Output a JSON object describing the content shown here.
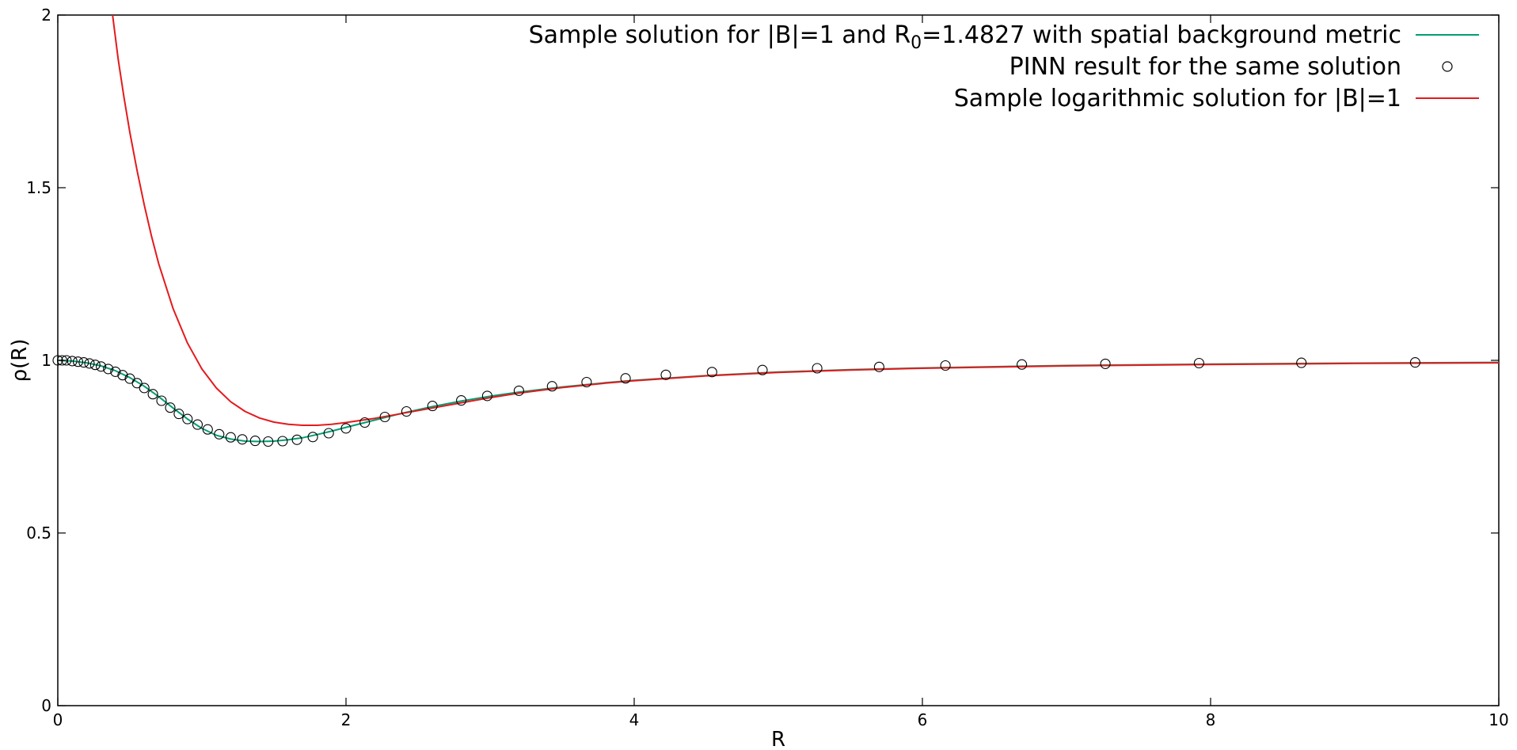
{
  "chart_data": {
    "type": "line",
    "title": "",
    "xlabel": "R",
    "ylabel": "ρ(R)",
    "xlim": [
      0,
      10
    ],
    "ylim": [
      0,
      2
    ],
    "x_ticks": [
      "0",
      "2",
      "4",
      "6",
      "8",
      "10"
    ],
    "y_ticks": [
      "0",
      "0.5",
      "1",
      "1.5",
      "2"
    ],
    "grid": false,
    "legend_position": "top-right",
    "series": [
      {
        "name": "Sample solution for |B|=1 and R0=1.4827 with spatial background metric",
        "name_parts": {
          "prefix": "Sample solution for |B|=1 and R",
          "subscript": "0",
          "suffix": "=1.4827 with spatial background metric"
        },
        "style": "line",
        "color": "#009e73",
        "x": [
          0,
          0.1,
          0.2,
          0.3,
          0.4,
          0.5,
          0.6,
          0.7,
          0.8,
          0.9,
          1.0,
          1.1,
          1.2,
          1.3,
          1.4,
          1.5,
          1.6,
          1.7,
          1.8,
          1.9,
          2.0,
          2.2,
          2.4,
          2.6,
          2.8,
          3.0,
          3.2,
          3.5,
          3.8,
          4.0,
          4.5,
          5.0,
          5.5,
          6.0,
          7.0,
          8.0,
          9.0,
          10.0
        ],
        "y": [
          1.0,
          0.998,
          0.993,
          0.984,
          0.97,
          0.95,
          0.925,
          0.895,
          0.862,
          0.83,
          0.803,
          0.783,
          0.772,
          0.766,
          0.765,
          0.766,
          0.77,
          0.776,
          0.785,
          0.795,
          0.806,
          0.827,
          0.848,
          0.866,
          0.882,
          0.896,
          0.908,
          0.923,
          0.935,
          0.942,
          0.956,
          0.966,
          0.973,
          0.978,
          0.985,
          0.989,
          0.992,
          0.994
        ]
      },
      {
        "name": "PINN result for the same solution",
        "style": "points",
        "marker": "open-circle",
        "color": "#000000",
        "x": [
          0.0,
          0.03,
          0.06,
          0.1,
          0.14,
          0.18,
          0.22,
          0.26,
          0.3,
          0.35,
          0.4,
          0.45,
          0.5,
          0.55,
          0.6,
          0.66,
          0.72,
          0.78,
          0.84,
          0.9,
          0.97,
          1.04,
          1.12,
          1.2,
          1.28,
          1.37,
          1.46,
          1.56,
          1.66,
          1.77,
          1.88,
          2.0,
          2.13,
          2.27,
          2.42,
          2.6,
          2.8,
          2.98,
          3.2,
          3.43,
          3.67,
          3.94,
          4.22,
          4.54,
          4.89,
          5.27,
          5.7,
          6.16,
          6.69,
          7.27,
          7.92,
          8.63,
          9.42
        ],
        "y": [
          1.0,
          1.0,
          1.0,
          0.998,
          0.996,
          0.994,
          0.991,
          0.987,
          0.982,
          0.975,
          0.967,
          0.957,
          0.947,
          0.934,
          0.92,
          0.902,
          0.883,
          0.863,
          0.845,
          0.83,
          0.814,
          0.8,
          0.786,
          0.777,
          0.771,
          0.767,
          0.765,
          0.766,
          0.77,
          0.778,
          0.789,
          0.803,
          0.82,
          0.836,
          0.852,
          0.868,
          0.884,
          0.897,
          0.912,
          0.925,
          0.937,
          0.948,
          0.958,
          0.966,
          0.972,
          0.977,
          0.981,
          0.985,
          0.988,
          0.99,
          0.992,
          0.993,
          0.994
        ]
      },
      {
        "name": "Sample logarithmic solution for |B|=1",
        "style": "line",
        "color": "#e41a1c",
        "x": [
          0.38,
          0.42,
          0.46,
          0.5,
          0.55,
          0.6,
          0.65,
          0.7,
          0.8,
          0.9,
          1.0,
          1.1,
          1.2,
          1.3,
          1.4,
          1.5,
          1.6,
          1.7,
          1.8,
          1.9,
          2.0,
          2.2,
          2.4,
          2.6,
          2.8,
          3.0,
          3.2,
          3.5,
          3.8,
          4.0,
          4.5,
          5.0,
          5.5,
          6.0,
          7.0,
          8.0,
          9.0,
          10.0
        ],
        "y": [
          2.0,
          1.87,
          1.76,
          1.66,
          1.55,
          1.45,
          1.36,
          1.28,
          1.15,
          1.05,
          0.975,
          0.92,
          0.88,
          0.852,
          0.833,
          0.821,
          0.815,
          0.812,
          0.812,
          0.815,
          0.82,
          0.832,
          0.847,
          0.862,
          0.877,
          0.892,
          0.905,
          0.921,
          0.934,
          0.941,
          0.955,
          0.965,
          0.972,
          0.977,
          0.984,
          0.988,
          0.991,
          0.993
        ]
      }
    ]
  }
}
